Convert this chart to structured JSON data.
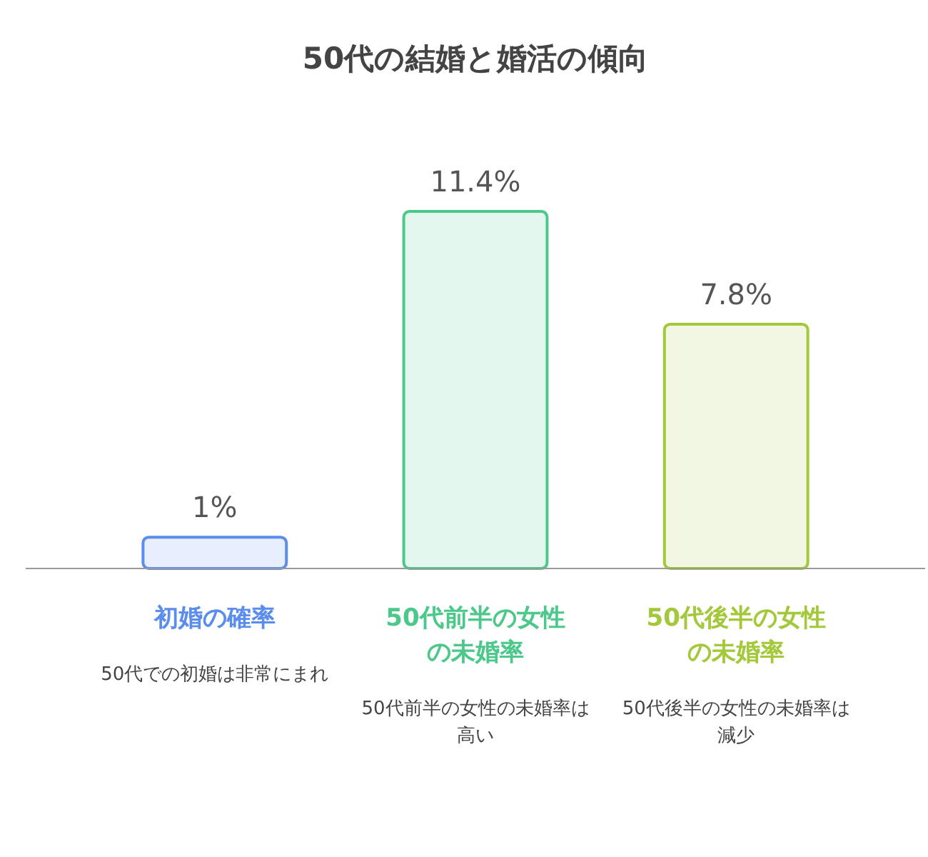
{
  "chart_data": {
    "type": "bar",
    "title": "50代の結婚と婚活の傾向",
    "categories": [
      "初婚の確率",
      "50代前半の女性の未婚率",
      "50代後半の女性の未婚率"
    ],
    "values": [
      1,
      11.4,
      7.8
    ],
    "colors": [
      "#5b8def",
      "#4cc98a",
      "#a3c93a"
    ],
    "value_labels": [
      "1%",
      "11.4%",
      "7.8%"
    ],
    "annotations": [
      "50代での初婚は非常にまれ",
      "50代前半の女性の未婚率は高い",
      "50代後半の女性の未婚率は減少"
    ]
  }
}
